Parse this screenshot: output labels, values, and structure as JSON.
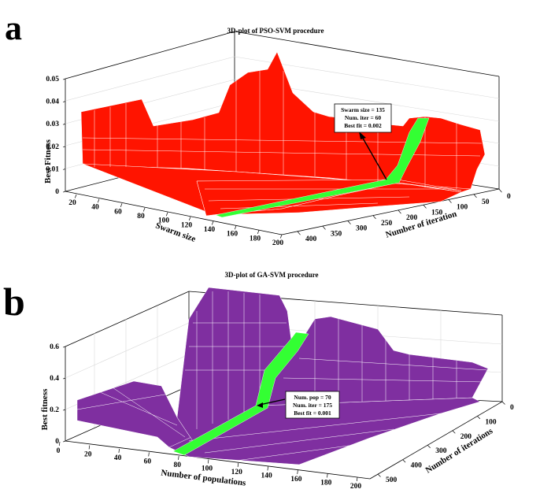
{
  "colors": {
    "pso_surface": "#ff1400",
    "ga_surface": "#7f2fa0",
    "highlight": "#33ff33",
    "mesh": "#ffffff",
    "grid": "#dddddd",
    "axis": "#000000"
  },
  "chart_data": [
    {
      "panel": "a",
      "type": "surface3d",
      "title": "3D-plot of PSO-SVM procedure",
      "xlabel": "Swarm size",
      "ylabel": "Number of iteration",
      "zlabel": "Best Fitness",
      "x_ticks": [
        "20",
        "40",
        "60",
        "80",
        "100",
        "120",
        "140",
        "160",
        "180",
        "200"
      ],
      "y_ticks": [
        "0",
        "50",
        "100",
        "150",
        "200",
        "250",
        "300",
        "350",
        "400"
      ],
      "z_ticks": [
        "0",
        "0.01",
        "0.02",
        "0.03",
        "0.04",
        "0.05"
      ],
      "xlim": [
        10,
        200
      ],
      "ylim": [
        0,
        400
      ],
      "zlim": [
        0,
        0.05
      ],
      "surface_description": "Best fitness vs swarm size (x) and number of iterations (y); fitness drops to 0.002 beyond 60 iterations for swarm size >= 135",
      "highlight_row": "Swarm size = 135",
      "annotation": [
        "Swarm size = 135",
        "Num. iter = 60",
        "Best fit = 0.002"
      ],
      "optimum": {
        "swarm_size": 135,
        "iterations": 60,
        "best_fit": 0.002
      }
    },
    {
      "panel": "b",
      "type": "surface3d",
      "title": "3D-plot of GA-SVM procedure",
      "xlabel": "Number of populations",
      "ylabel": "Number of iterations",
      "zlabel": "Best fitness",
      "x_ticks": [
        "0",
        "20",
        "40",
        "60",
        "80",
        "100",
        "120",
        "140",
        "160",
        "180",
        "200"
      ],
      "y_ticks": [
        "0",
        "100",
        "200",
        "300",
        "400",
        "500"
      ],
      "z_ticks": [
        "0",
        "0.2",
        "0.4",
        "0.6"
      ],
      "xlim": [
        0,
        200
      ],
      "ylim": [
        0,
        500
      ],
      "zlim": [
        0,
        0.6
      ],
      "surface_description": "Best fitness vs number of populations (x) and iterations (y); minimum 0.001 at population 70 and 175 iterations",
      "highlight_row": "Num. pop = 70",
      "annotation": [
        "Num. pop = 70",
        "Num. iter = 175",
        "Best fit = 0.001"
      ],
      "optimum": {
        "num_pop": 70,
        "iterations": 175,
        "best_fit": 0.001
      }
    }
  ]
}
